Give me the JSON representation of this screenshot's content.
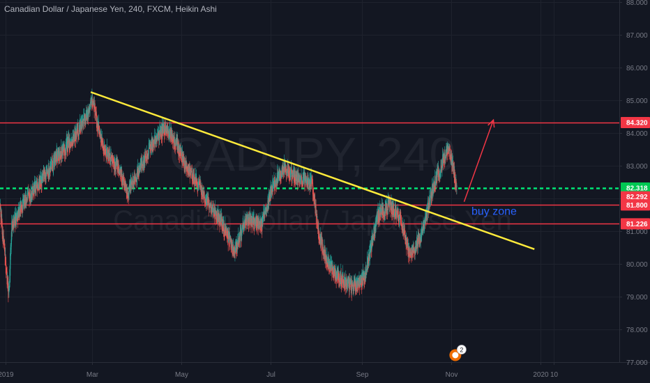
{
  "header": {
    "title": "Canadian Dollar / Japanese Yen, 240, FXCM, Heikin Ashi"
  },
  "watermark": {
    "symbol": "CADJPY, 240",
    "name": "Canadian Dollar / Japanese Yen"
  },
  "colors": {
    "background": "#131722",
    "up": "#26a69a",
    "down": "#ef5350",
    "resistance": "#f23645",
    "current": "#00e676",
    "trendline": "#ffeb3b",
    "annotation": "#2962ff"
  },
  "chart_data": {
    "type": "candlestick",
    "title": "Canadian Dollar / Japanese Yen, 240, FXCM, Heikin Ashi",
    "ylim": [
      77.0,
      88.0
    ],
    "y_ticks": [
      "77.000",
      "78.000",
      "79.000",
      "80.000",
      "81.000",
      "82.000",
      "83.000",
      "84.000",
      "85.000",
      "86.000",
      "87.000",
      "88.000"
    ],
    "x_ticks": [
      "2019",
      "Mar",
      "May",
      "Jul",
      "Sep",
      "Nov",
      "2020",
      "10"
    ],
    "x_tick_dates": [
      "2019-01-01",
      "2019-03-01",
      "2019-05-01",
      "2019-07-01",
      "2019-09-01",
      "2019-11-01",
      "2020-01-01",
      "2020-01-10"
    ],
    "xlim": [
      "2018-12-28",
      "2020-02-24"
    ],
    "price_path": [
      [
        "2018-12-28",
        81.8
      ],
      [
        "2019-01-03",
        79.0
      ],
      [
        "2019-01-05",
        81.2
      ],
      [
        "2019-01-15",
        82.0
      ],
      [
        "2019-01-25",
        82.5
      ],
      [
        "2019-02-05",
        83.3
      ],
      [
        "2019-02-15",
        83.8
      ],
      [
        "2019-02-25",
        84.5
      ],
      [
        "2019-03-01",
        85.0
      ],
      [
        "2019-03-08",
        83.6
      ],
      [
        "2019-03-18",
        83.0
      ],
      [
        "2019-03-25",
        82.2
      ],
      [
        "2019-04-01",
        82.8
      ],
      [
        "2019-04-10",
        83.6
      ],
      [
        "2019-04-20",
        84.2
      ],
      [
        "2019-04-28",
        83.6
      ],
      [
        "2019-05-08",
        82.7
      ],
      [
        "2019-05-18",
        82.0
      ],
      [
        "2019-05-28",
        81.3
      ],
      [
        "2019-06-06",
        80.4
      ],
      [
        "2019-06-15",
        81.4
      ],
      [
        "2019-06-25",
        81.2
      ],
      [
        "2019-07-01",
        82.3
      ],
      [
        "2019-07-10",
        82.9
      ],
      [
        "2019-07-20",
        82.6
      ],
      [
        "2019-07-29",
        82.5
      ],
      [
        "2019-08-03",
        80.8
      ],
      [
        "2019-08-10",
        79.9
      ],
      [
        "2019-08-17",
        79.6
      ],
      [
        "2019-08-25",
        79.3
      ],
      [
        "2019-09-03",
        79.6
      ],
      [
        "2019-09-12",
        81.5
      ],
      [
        "2019-09-20",
        81.8
      ],
      [
        "2019-09-28",
        81.4
      ],
      [
        "2019-10-04",
        80.2
      ],
      [
        "2019-10-12",
        80.9
      ],
      [
        "2019-10-20",
        82.4
      ],
      [
        "2019-10-27",
        83.2
      ],
      [
        "2019-10-30",
        83.5
      ],
      [
        "2019-11-03",
        82.8
      ],
      [
        "2019-11-05",
        82.3
      ]
    ],
    "horizontal_levels": [
      {
        "value": 84.32,
        "label": "84.320",
        "style": "solid",
        "color": "#f23645"
      },
      {
        "value": 82.318,
        "label": "82.318",
        "style": "dashed",
        "color": "#00e676"
      },
      {
        "value": 81.8,
        "label": "81.800",
        "style": "solid",
        "color": "#f23645"
      },
      {
        "value": 81.226,
        "label": "81.226",
        "style": "solid",
        "color": "#f23645"
      }
    ],
    "price_tags": [
      {
        "value": 84.32,
        "label": "84.320",
        "color": "#f23645"
      },
      {
        "value": 82.318,
        "label": "82.318",
        "color": "#00c853"
      },
      {
        "value": 82.05,
        "label": "82.292",
        "color": "#f23645"
      },
      {
        "value": 81.8,
        "label": "81.800",
        "color": "#f23645"
      },
      {
        "value": 81.226,
        "label": "81.226",
        "color": "#f23645"
      }
    ],
    "trendline": {
      "start": [
        "2019-02-28",
        85.25
      ],
      "end": [
        "2019-12-28",
        80.45
      ]
    },
    "arrow": {
      "start": [
        "2019-11-10",
        81.9
      ],
      "end": [
        "2019-11-30",
        84.4
      ]
    },
    "annotations": [
      {
        "text": "buy zone",
        "at": [
          "2019-11-15",
          81.5
        ]
      }
    ],
    "events": [
      {
        "label": "2",
        "date": "2019-11-04"
      }
    ]
  }
}
